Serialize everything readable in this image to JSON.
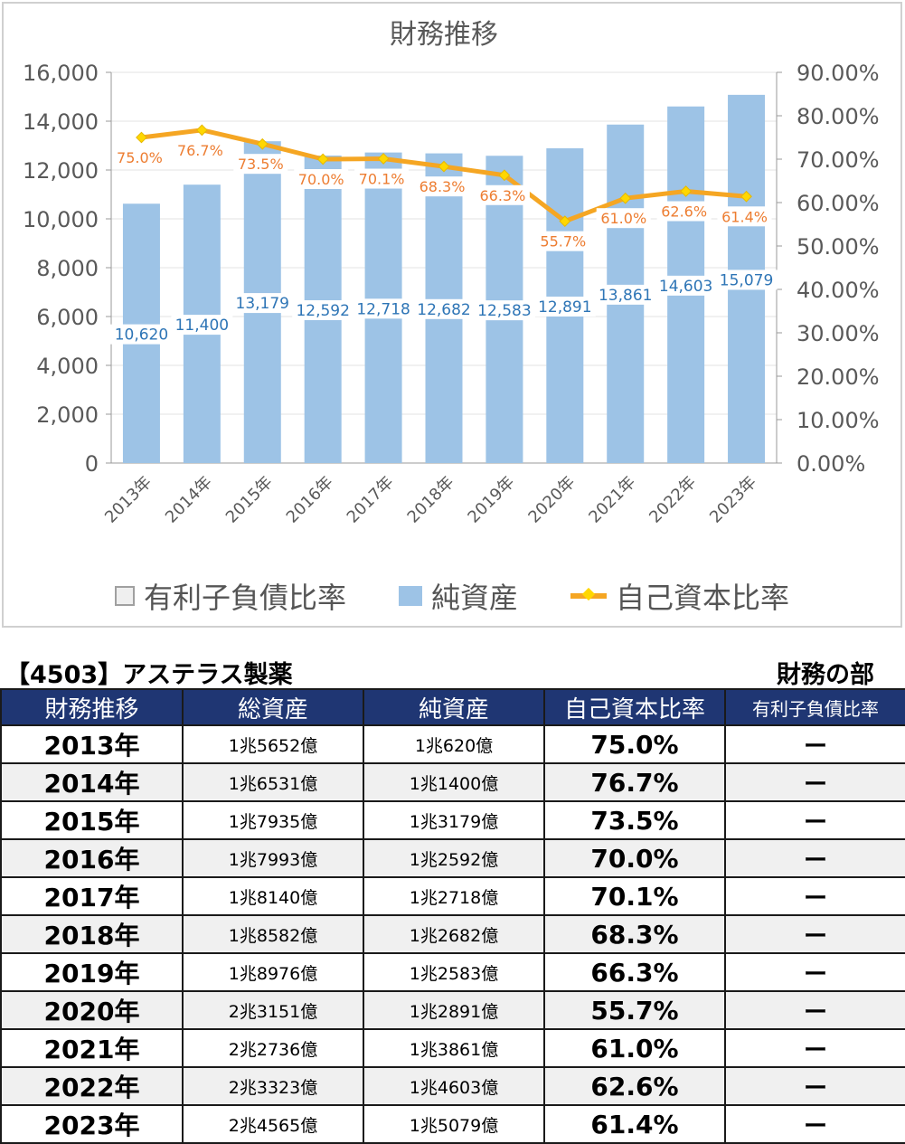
{
  "chart_data": {
    "type": "bar+line",
    "title": "財務推移",
    "categories": [
      "2013年",
      "2014年",
      "2015年",
      "2016年",
      "2017年",
      "2018年",
      "2019年",
      "2020年",
      "2021年",
      "2022年",
      "2023年"
    ],
    "series": [
      {
        "name": "純資産",
        "type": "bar",
        "axis": "left",
        "color": "#9dc3e6",
        "values": [
          10620,
          11400,
          13179,
          12592,
          12718,
          12682,
          12583,
          12891,
          13861,
          14603,
          15079
        ]
      },
      {
        "name": "自己資本比率",
        "type": "line",
        "axis": "right",
        "color": "#f5a623",
        "values": [
          75.0,
          76.7,
          73.5,
          70.0,
          70.1,
          68.3,
          66.3,
          55.7,
          61.0,
          62.6,
          61.4
        ]
      }
    ],
    "bar_labels": [
      "10,620",
      "11,400",
      "13,179",
      "12,592",
      "12,718",
      "12,682",
      "12,583",
      "12,891",
      "13,861",
      "14,603",
      "15,079"
    ],
    "line_labels": [
      "75.0%",
      "76.7%",
      "73.5%",
      "70.0%",
      "70.1%",
      "68.3%",
      "66.3%",
      "55.7%",
      "61.0%",
      "62.6%",
      "61.4%"
    ],
    "y_left": {
      "range": [
        0,
        16000
      ],
      "ticks": [
        "0",
        "2,000",
        "4,000",
        "6,000",
        "8,000",
        "10,000",
        "12,000",
        "14,000",
        "16,000"
      ]
    },
    "y_right": {
      "range": [
        0,
        90
      ],
      "ticks": [
        "0.00%",
        "10.00%",
        "20.00%",
        "30.00%",
        "40.00%",
        "50.00%",
        "60.00%",
        "70.00%",
        "80.00%",
        "90.00%"
      ]
    },
    "legend": {
      "position": "bottom",
      "items": [
        "有利子負債比率",
        "純資産",
        "自己資本比率"
      ]
    },
    "grid": true
  },
  "table": {
    "company": "【4503】アステラス製薬",
    "section": "財務の部",
    "headers": [
      "財務推移",
      "総資産",
      "純資産",
      "自己資本比率",
      "有利子負債比率"
    ],
    "rows": [
      [
        "2013年",
        "1兆5652億",
        "1兆620億",
        "75.0%",
        "ー"
      ],
      [
        "2014年",
        "1兆6531億",
        "1兆1400億",
        "76.7%",
        "ー"
      ],
      [
        "2015年",
        "1兆7935億",
        "1兆3179億",
        "73.5%",
        "ー"
      ],
      [
        "2016年",
        "1兆7993億",
        "1兆2592億",
        "70.0%",
        "ー"
      ],
      [
        "2017年",
        "1兆8140億",
        "1兆2718億",
        "70.1%",
        "ー"
      ],
      [
        "2018年",
        "1兆8582億",
        "1兆2682億",
        "68.3%",
        "ー"
      ],
      [
        "2019年",
        "1兆8976億",
        "1兆2583億",
        "66.3%",
        "ー"
      ],
      [
        "2020年",
        "2兆3151億",
        "1兆2891億",
        "55.7%",
        "ー"
      ],
      [
        "2021年",
        "2兆2736億",
        "1兆3861億",
        "61.0%",
        "ー"
      ],
      [
        "2022年",
        "2兆3323億",
        "1兆4603億",
        "62.6%",
        "ー"
      ],
      [
        "2023年",
        "2兆4565億",
        "1兆5079億",
        "61.4%",
        "ー"
      ]
    ]
  }
}
